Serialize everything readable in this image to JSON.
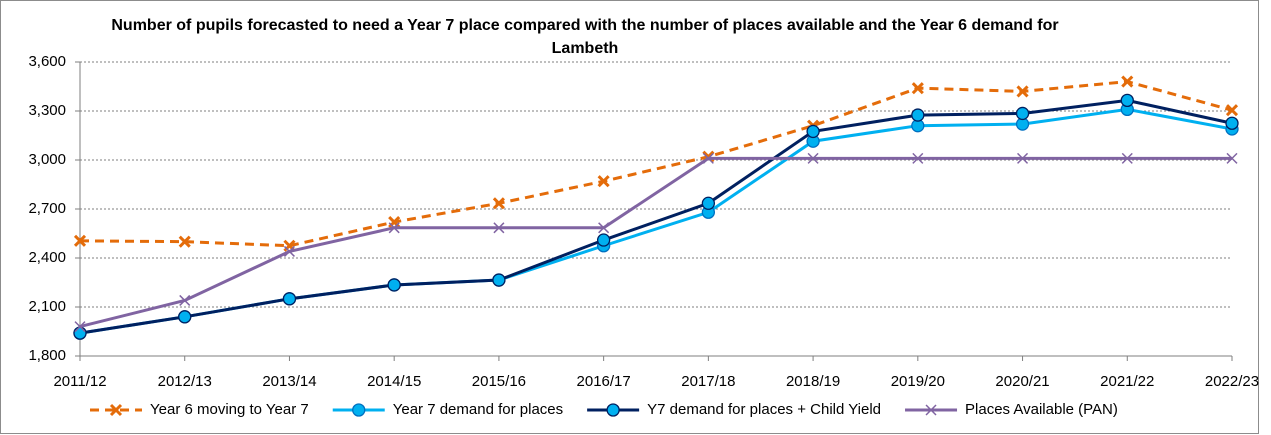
{
  "chart_data": {
    "type": "line",
    "title": "Number of pupils forecasted to need a Year 7 place compared with the number of places available and the Year 6 demand for Lambeth",
    "categories": [
      "2011/12",
      "2012/13",
      "2013/14",
      "2014/15",
      "2015/16",
      "2016/17",
      "2017/18",
      "2018/19",
      "2019/20",
      "2020/21",
      "2021/22",
      "2022/23"
    ],
    "series": [
      {
        "name": "Year 6 moving to Year 7",
        "color": "#e46c0a",
        "marker": "x",
        "dashed": true,
        "values": [
          2505,
          2500,
          2475,
          2620,
          2735,
          2870,
          3020,
          3210,
          3440,
          3420,
          3480,
          3305
        ]
      },
      {
        "name": "Year 7 demand for places",
        "color": "#00b0f0",
        "marker": "circle",
        "dashed": false,
        "values": [
          1940,
          2040,
          2150,
          2235,
          2265,
          2475,
          2680,
          3115,
          3210,
          3220,
          3310,
          3190
        ]
      },
      {
        "name": "Y7 demand for places + Child Yield",
        "color": "#002060",
        "marker": "circle",
        "dashed": false,
        "values": [
          1940,
          2040,
          2150,
          2235,
          2265,
          2510,
          2735,
          3175,
          3275,
          3285,
          3365,
          3225
        ]
      },
      {
        "name": "Places Available (PAN)",
        "color": "#8064a2",
        "marker": "x",
        "dashed": false,
        "values": [
          1980,
          2140,
          2440,
          2585,
          2585,
          2585,
          3010,
          3010,
          3010,
          3010,
          3010,
          3010
        ]
      }
    ],
    "ylim": [
      1800,
      3600
    ],
    "yticks": [
      {
        "value": 1800,
        "label": "1,800"
      },
      {
        "value": 2100,
        "label": "2,100"
      },
      {
        "value": 2400,
        "label": "2,400"
      },
      {
        "value": 2700,
        "label": "2,700"
      },
      {
        "value": 3000,
        "label": "3,000"
      },
      {
        "value": 3300,
        "label": "3,300"
      },
      {
        "value": 3600,
        "label": "3,600"
      }
    ],
    "grid": true,
    "legend": "bottom"
  }
}
